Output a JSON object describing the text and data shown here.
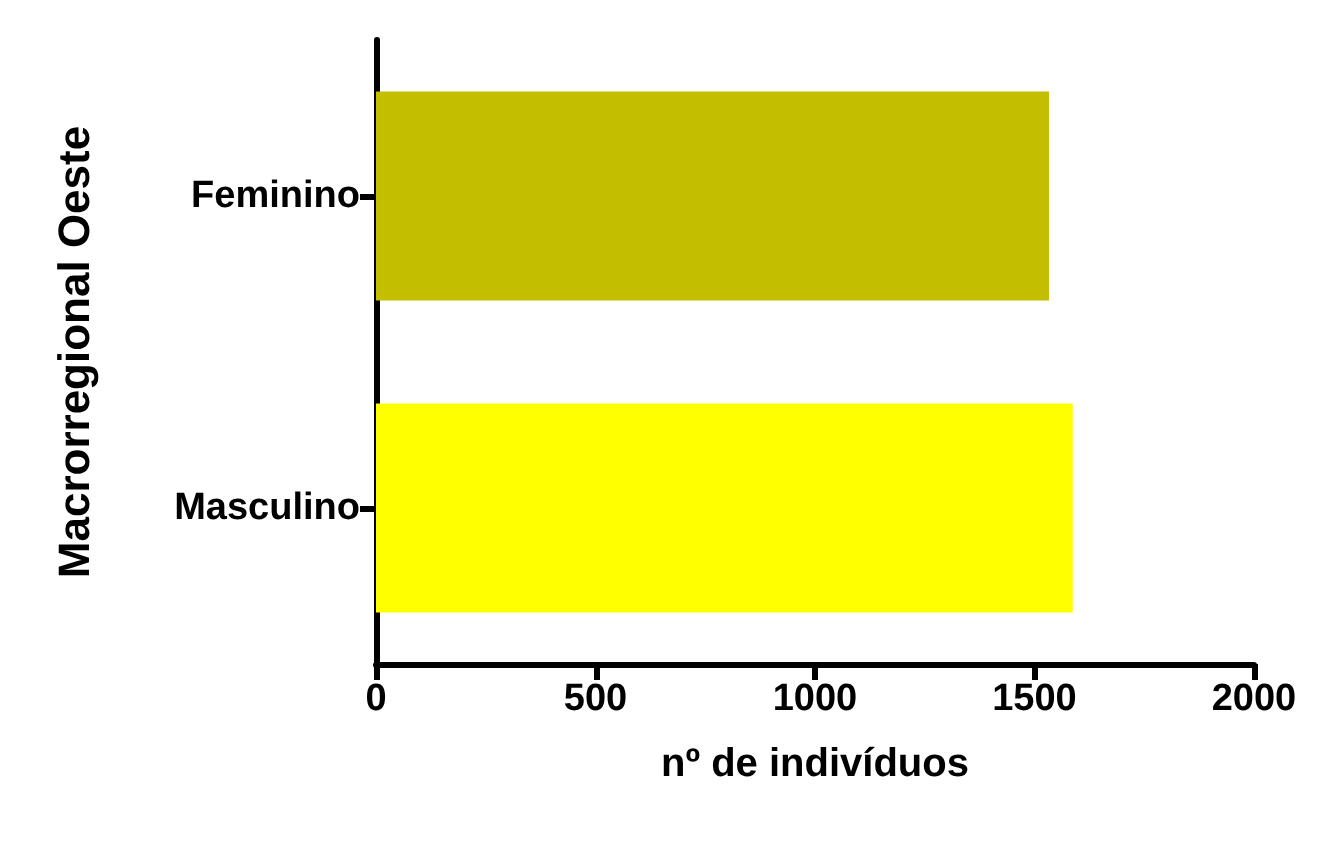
{
  "chart_data": {
    "type": "bar",
    "orientation": "horizontal",
    "categories": [
      "Feminino",
      "Masculino"
    ],
    "values": [
      1533,
      1587
    ],
    "colors": [
      "#c3bf00",
      "#ffff00"
    ],
    "xlim": [
      0,
      2000
    ],
    "xticks": [
      0,
      500,
      1000,
      1500,
      2000
    ],
    "xlabel": "nº de indivíduos",
    "ylabel": "Macrorregional Oeste",
    "grid": false
  }
}
